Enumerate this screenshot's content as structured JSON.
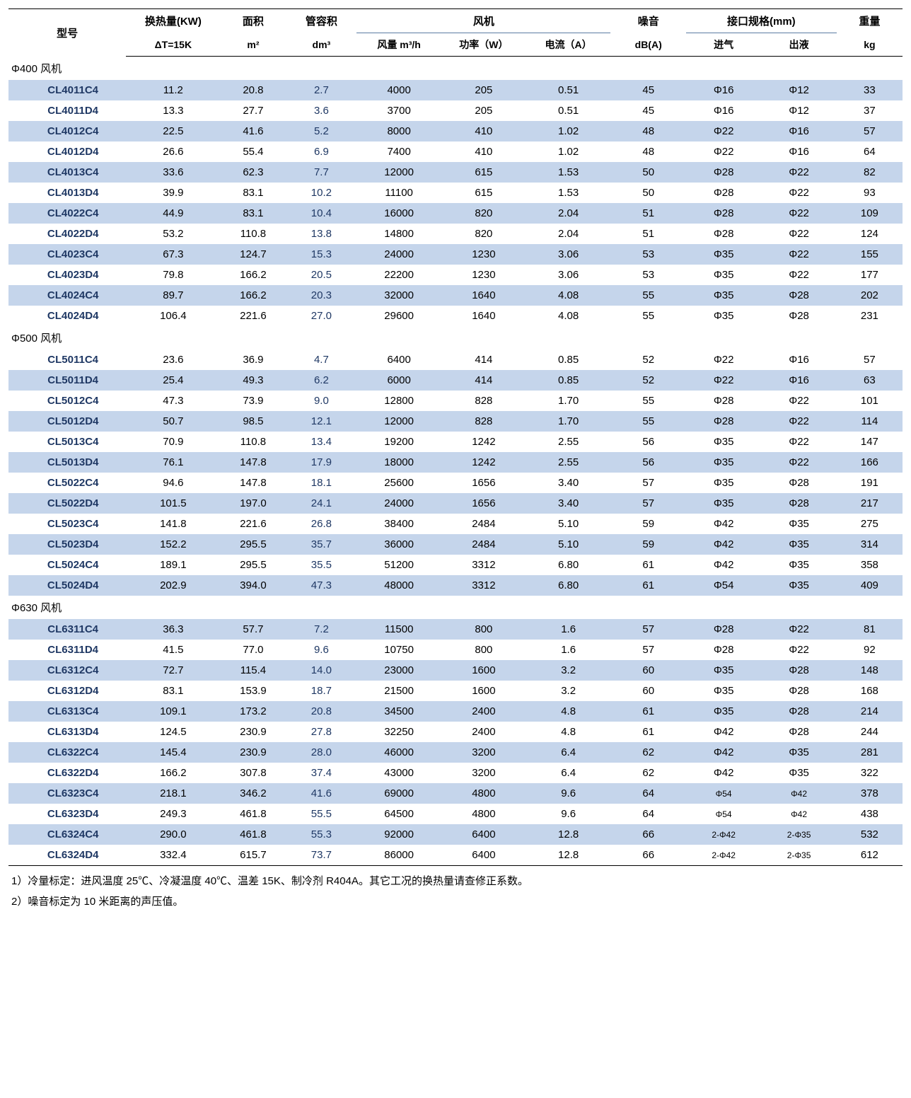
{
  "table": {
    "columns": {
      "model": {
        "l1": "型号",
        "l2": ""
      },
      "heat": {
        "l1": "换热量(KW)",
        "l2": "ΔT=15K"
      },
      "area": {
        "l1": "面积",
        "l2": "m²"
      },
      "tube": {
        "l1": "管容积",
        "l2": "dm³"
      },
      "fan_group": "风机",
      "airflow": "风量 m³/h",
      "power": "功率（W）",
      "current": "电流（A）",
      "noise": {
        "l1": "噪音",
        "l2": "dB(A)"
      },
      "conn_group": "接口规格(mm)",
      "inlet": "进气",
      "outlet": "出液",
      "weight": {
        "l1": "重量",
        "l2": "kg"
      }
    },
    "colors": {
      "row_blue": "#c5d5eb",
      "text_navy": "#1f3864",
      "rule": "#000000",
      "subrule": "#5b7ca3"
    },
    "sections": [
      {
        "title": "Φ400 风机",
        "rows": [
          {
            "model": "CL4011C4",
            "heat": "11.2",
            "area": "20.8",
            "tube": "2.7",
            "airflow": "4000",
            "power": "205",
            "current": "0.51",
            "noise": "45",
            "inlet": "Φ16",
            "outlet": "Φ12",
            "weight": "33",
            "blue": true
          },
          {
            "model": "CL4011D4",
            "heat": "13.3",
            "area": "27.7",
            "tube": "3.6",
            "airflow": "3700",
            "power": "205",
            "current": "0.51",
            "noise": "45",
            "inlet": "Φ16",
            "outlet": "Φ12",
            "weight": "37",
            "blue": false
          },
          {
            "model": "CL4012C4",
            "heat": "22.5",
            "area": "41.6",
            "tube": "5.2",
            "airflow": "8000",
            "power": "410",
            "current": "1.02",
            "noise": "48",
            "inlet": "Φ22",
            "outlet": "Φ16",
            "weight": "57",
            "blue": true
          },
          {
            "model": "CL4012D4",
            "heat": "26.6",
            "area": "55.4",
            "tube": "6.9",
            "airflow": "7400",
            "power": "410",
            "current": "1.02",
            "noise": "48",
            "inlet": "Φ22",
            "outlet": "Φ16",
            "weight": "64",
            "blue": false
          },
          {
            "model": "CL4013C4",
            "heat": "33.6",
            "area": "62.3",
            "tube": "7.7",
            "airflow": "12000",
            "power": "615",
            "current": "1.53",
            "noise": "50",
            "inlet": "Φ28",
            "outlet": "Φ22",
            "weight": "82",
            "blue": true
          },
          {
            "model": "CL4013D4",
            "heat": "39.9",
            "area": "83.1",
            "tube": "10.2",
            "airflow": "11100",
            "power": "615",
            "current": "1.53",
            "noise": "50",
            "inlet": "Φ28",
            "outlet": "Φ22",
            "weight": "93",
            "blue": false
          },
          {
            "model": "CL4022C4",
            "heat": "44.9",
            "area": "83.1",
            "tube": "10.4",
            "airflow": "16000",
            "power": "820",
            "current": "2.04",
            "noise": "51",
            "inlet": "Φ28",
            "outlet": "Φ22",
            "weight": "109",
            "blue": true
          },
          {
            "model": "CL4022D4",
            "heat": "53.2",
            "area": "110.8",
            "tube": "13.8",
            "airflow": "14800",
            "power": "820",
            "current": "2.04",
            "noise": "51",
            "inlet": "Φ28",
            "outlet": "Φ22",
            "weight": "124",
            "blue": false
          },
          {
            "model": "CL4023C4",
            "heat": "67.3",
            "area": "124.7",
            "tube": "15.3",
            "airflow": "24000",
            "power": "1230",
            "current": "3.06",
            "noise": "53",
            "inlet": "Φ35",
            "outlet": "Φ22",
            "weight": "155",
            "blue": true
          },
          {
            "model": "CL4023D4",
            "heat": "79.8",
            "area": "166.2",
            "tube": "20.5",
            "airflow": "22200",
            "power": "1230",
            "current": "3.06",
            "noise": "53",
            "inlet": "Φ35",
            "outlet": "Φ22",
            "weight": "177",
            "blue": false
          },
          {
            "model": "CL4024C4",
            "heat": "89.7",
            "area": "166.2",
            "tube": "20.3",
            "airflow": "32000",
            "power": "1640",
            "current": "4.08",
            "noise": "55",
            "inlet": "Φ35",
            "outlet": "Φ28",
            "weight": "202",
            "blue": true
          },
          {
            "model": "CL4024D4",
            "heat": "106.4",
            "area": "221.6",
            "tube": "27.0",
            "airflow": "29600",
            "power": "1640",
            "current": "4.08",
            "noise": "55",
            "inlet": "Φ35",
            "outlet": "Φ28",
            "weight": "231",
            "blue": false
          }
        ]
      },
      {
        "title": "Φ500 风机",
        "rows": [
          {
            "model": "CL5011C4",
            "heat": "23.6",
            "area": "36.9",
            "tube": "4.7",
            "airflow": "6400",
            "power": "414",
            "current": "0.85",
            "noise": "52",
            "inlet": "Φ22",
            "outlet": "Φ16",
            "weight": "57",
            "blue": false
          },
          {
            "model": "CL5011D4",
            "heat": "25.4",
            "area": "49.3",
            "tube": "6.2",
            "airflow": "6000",
            "power": "414",
            "current": "0.85",
            "noise": "52",
            "inlet": "Φ22",
            "outlet": "Φ16",
            "weight": "63",
            "blue": true
          },
          {
            "model": "CL5012C4",
            "heat": "47.3",
            "area": "73.9",
            "tube": "9.0",
            "airflow": "12800",
            "power": "828",
            "current": "1.70",
            "noise": "55",
            "inlet": "Φ28",
            "outlet": "Φ22",
            "weight": "101",
            "blue": false
          },
          {
            "model": "CL5012D4",
            "heat": "50.7",
            "area": "98.5",
            "tube": "12.1",
            "airflow": "12000",
            "power": "828",
            "current": "1.70",
            "noise": "55",
            "inlet": "Φ28",
            "outlet": "Φ22",
            "weight": "114",
            "blue": true
          },
          {
            "model": "CL5013C4",
            "heat": "70.9",
            "area": "110.8",
            "tube": "13.4",
            "airflow": "19200",
            "power": "1242",
            "current": "2.55",
            "noise": "56",
            "inlet": "Φ35",
            "outlet": "Φ22",
            "weight": "147",
            "blue": false
          },
          {
            "model": "CL5013D4",
            "heat": "76.1",
            "area": "147.8",
            "tube": "17.9",
            "airflow": "18000",
            "power": "1242",
            "current": "2.55",
            "noise": "56",
            "inlet": "Φ35",
            "outlet": "Φ22",
            "weight": "166",
            "blue": true
          },
          {
            "model": "CL5022C4",
            "heat": "94.6",
            "area": "147.8",
            "tube": "18.1",
            "airflow": "25600",
            "power": "1656",
            "current": "3.40",
            "noise": "57",
            "inlet": "Φ35",
            "outlet": "Φ28",
            "weight": "191",
            "blue": false
          },
          {
            "model": "CL5022D4",
            "heat": "101.5",
            "area": "197.0",
            "tube": "24.1",
            "airflow": "24000",
            "power": "1656",
            "current": "3.40",
            "noise": "57",
            "inlet": "Φ35",
            "outlet": "Φ28",
            "weight": "217",
            "blue": true
          },
          {
            "model": "CL5023C4",
            "heat": "141.8",
            "area": "221.6",
            "tube": "26.8",
            "airflow": "38400",
            "power": "2484",
            "current": "5.10",
            "noise": "59",
            "inlet": "Φ42",
            "outlet": "Φ35",
            "weight": "275",
            "blue": false
          },
          {
            "model": "CL5023D4",
            "heat": "152.2",
            "area": "295.5",
            "tube": "35.7",
            "airflow": "36000",
            "power": "2484",
            "current": "5.10",
            "noise": "59",
            "inlet": "Φ42",
            "outlet": "Φ35",
            "weight": "314",
            "blue": true
          },
          {
            "model": "CL5024C4",
            "heat": "189.1",
            "area": "295.5",
            "tube": "35.5",
            "airflow": "51200",
            "power": "3312",
            "current": "6.80",
            "noise": "61",
            "inlet": "Φ42",
            "outlet": "Φ35",
            "weight": "358",
            "blue": false
          },
          {
            "model": "CL5024D4",
            "heat": "202.9",
            "area": "394.0",
            "tube": "47.3",
            "airflow": "48000",
            "power": "3312",
            "current": "6.80",
            "noise": "61",
            "inlet": "Φ54",
            "outlet": "Φ35",
            "weight": "409",
            "blue": true
          }
        ]
      },
      {
        "title": "Φ630 风机",
        "rows": [
          {
            "model": "CL6311C4",
            "heat": "36.3",
            "area": "57.7",
            "tube": "7.2",
            "airflow": "11500",
            "power": "800",
            "current": "1.6",
            "noise": "57",
            "inlet": "Φ28",
            "outlet": "Φ22",
            "weight": "81",
            "blue": true
          },
          {
            "model": "CL6311D4",
            "heat": "41.5",
            "area": "77.0",
            "tube": "9.6",
            "airflow": "10750",
            "power": "800",
            "current": "1.6",
            "noise": "57",
            "inlet": "Φ28",
            "outlet": "Φ22",
            "weight": "92",
            "blue": false
          },
          {
            "model": "CL6312C4",
            "heat": "72.7",
            "area": "115.4",
            "tube": "14.0",
            "airflow": "23000",
            "power": "1600",
            "current": "3.2",
            "noise": "60",
            "inlet": "Φ35",
            "outlet": "Φ28",
            "weight": "148",
            "blue": true
          },
          {
            "model": "CL6312D4",
            "heat": "83.1",
            "area": "153.9",
            "tube": "18.7",
            "airflow": "21500",
            "power": "1600",
            "current": "3.2",
            "noise": "60",
            "inlet": "Φ35",
            "outlet": "Φ28",
            "weight": "168",
            "blue": false
          },
          {
            "model": "CL6313C4",
            "heat": "109.1",
            "area": "173.2",
            "tube": "20.8",
            "airflow": "34500",
            "power": "2400",
            "current": "4.8",
            "noise": "61",
            "inlet": "Φ35",
            "outlet": "Φ28",
            "weight": "214",
            "blue": true
          },
          {
            "model": "CL6313D4",
            "heat": "124.5",
            "area": "230.9",
            "tube": "27.8",
            "airflow": "32250",
            "power": "2400",
            "current": "4.8",
            "noise": "61",
            "inlet": "Φ42",
            "outlet": "Φ28",
            "weight": "244",
            "blue": false
          },
          {
            "model": "CL6322C4",
            "heat": "145.4",
            "area": "230.9",
            "tube": "28.0",
            "airflow": "46000",
            "power": "3200",
            "current": "6.4",
            "noise": "62",
            "inlet": "Φ42",
            "outlet": "Φ35",
            "weight": "281",
            "blue": true
          },
          {
            "model": "CL6322D4",
            "heat": "166.2",
            "area": "307.8",
            "tube": "37.4",
            "airflow": "43000",
            "power": "3200",
            "current": "6.4",
            "noise": "62",
            "inlet": "Φ42",
            "outlet": "Φ35",
            "weight": "322",
            "blue": false
          },
          {
            "model": "CL6323C4",
            "heat": "218.1",
            "area": "346.2",
            "tube": "41.6",
            "airflow": "69000",
            "power": "4800",
            "current": "9.6",
            "noise": "64",
            "inlet": "Φ54",
            "outlet": "Φ42",
            "weight": "378",
            "blue": true,
            "small": true
          },
          {
            "model": "CL6323D4",
            "heat": "249.3",
            "area": "461.8",
            "tube": "55.5",
            "airflow": "64500",
            "power": "4800",
            "current": "9.6",
            "noise": "64",
            "inlet": "Φ54",
            "outlet": "Φ42",
            "weight": "438",
            "blue": false,
            "small": true
          },
          {
            "model": "CL6324C4",
            "heat": "290.0",
            "area": "461.8",
            "tube": "55.3",
            "airflow": "92000",
            "power": "6400",
            "current": "12.8",
            "noise": "66",
            "inlet": "2-Φ42",
            "outlet": "2-Φ35",
            "weight": "532",
            "blue": true,
            "small": true
          },
          {
            "model": "CL6324D4",
            "heat": "332.4",
            "area": "615.7",
            "tube": "73.7",
            "airflow": "86000",
            "power": "6400",
            "current": "12.8",
            "noise": "66",
            "inlet": "2-Φ42",
            "outlet": "2-Φ35",
            "weight": "612",
            "blue": false,
            "small": true
          }
        ]
      }
    ]
  },
  "notes": [
    "1）冷量标定：进风温度 25℃、冷凝温度 40℃、温差 15K、制冷剂 R404A。其它工况的换热量请查修正系数。",
    "2）噪音标定为 10 米距离的声压值。"
  ]
}
